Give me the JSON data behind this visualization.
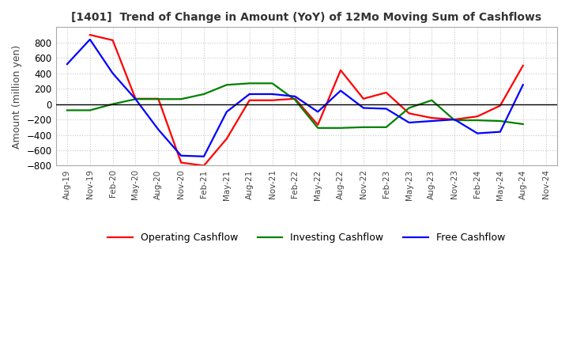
{
  "title": "[1401]  Trend of Change in Amount (YoY) of 12Mo Moving Sum of Cashflows",
  "ylabel": "Amount (million yen)",
  "ylim": [
    -800,
    1000
  ],
  "yticks": [
    -800,
    -600,
    -400,
    -200,
    0,
    200,
    400,
    600,
    800
  ],
  "x_labels": [
    "Aug-19",
    "Nov-19",
    "Feb-20",
    "May-20",
    "Aug-20",
    "Nov-20",
    "Feb-21",
    "May-21",
    "Aug-21",
    "Nov-21",
    "Feb-22",
    "May-22",
    "Aug-22",
    "Nov-22",
    "Feb-23",
    "May-23",
    "Aug-23",
    "Nov-23",
    "Feb-24",
    "May-24",
    "Aug-24",
    "Nov-24"
  ],
  "operating": [
    null,
    900,
    830,
    70,
    70,
    -760,
    -800,
    -450,
    50,
    50,
    70,
    -270,
    440,
    70,
    150,
    -120,
    -180,
    -200,
    -160,
    -20,
    500,
    null
  ],
  "investing": [
    -80,
    -80,
    0,
    65,
    65,
    65,
    130,
    250,
    270,
    270,
    55,
    -310,
    -310,
    -300,
    -300,
    -50,
    50,
    -210,
    -210,
    -220,
    -260,
    null
  ],
  "free": [
    520,
    840,
    400,
    65,
    -330,
    -670,
    -680,
    -100,
    130,
    130,
    100,
    -100,
    175,
    -50,
    -60,
    -240,
    -220,
    -200,
    -380,
    -360,
    250,
    null
  ],
  "colors": {
    "operating": "#ff0000",
    "investing": "#008000",
    "free": "#0000ff"
  },
  "legend_labels": [
    "Operating Cashflow",
    "Investing Cashflow",
    "Free Cashflow"
  ],
  "background_color": "#ffffff",
  "grid_color": "#c8c8c8"
}
